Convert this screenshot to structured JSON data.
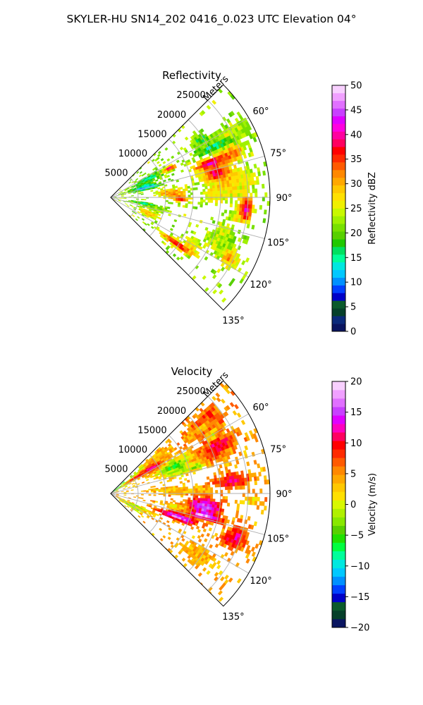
{
  "figure": {
    "suptitle": "SKYLER-HU  SN14_202  0416_0.023 UTC Elevation 04°"
  },
  "chart_data": [
    {
      "type": "heatmap",
      "projection": "polar-sector",
      "title": "Reflectivity",
      "radial_label": "Meters",
      "radial_ticks": [
        "5000",
        "10000",
        "15000",
        "20000",
        "25000"
      ],
      "angle_ticks": [
        "60°",
        "75°",
        "90°",
        "105°",
        "120°",
        "135°"
      ],
      "azimuth_range_deg": [
        45,
        135
      ],
      "range_max_m": 29000,
      "grid": true,
      "colorbar": {
        "label": "Reflectivity dBZ",
        "vmin": 0,
        "vmax": 50,
        "ticks": [
          "0",
          "5",
          "10",
          "15",
          "20",
          "25",
          "30",
          "35",
          "40",
          "45",
          "50"
        ],
        "colors": [
          "#0a1560",
          "#0b2a7a",
          "#06402a",
          "#0b5a2c",
          "#0000c8",
          "#0040ff",
          "#0090ff",
          "#00c8ff",
          "#00e8e0",
          "#00ff9a",
          "#00e060",
          "#20c800",
          "#58d000",
          "#78e000",
          "#a0f000",
          "#c8f800",
          "#f0f000",
          "#ffe000",
          "#ffc800",
          "#ffa800",
          "#ff8800",
          "#ff5a00",
          "#ff2a00",
          "#ff0000",
          "#ff0060",
          "#ff00a0",
          "#ff00e0",
          "#e000ff",
          "#c840ff",
          "#e070ff",
          "#f0a0ff",
          "#f8d0ff"
        ]
      }
    },
    {
      "type": "heatmap",
      "projection": "polar-sector",
      "title": "Velocity",
      "radial_label": "Meters",
      "radial_ticks": [
        "5000",
        "10000",
        "15000",
        "20000",
        "25000"
      ],
      "angle_ticks": [
        "60°",
        "75°",
        "90°",
        "105°",
        "120°",
        "135°"
      ],
      "azimuth_range_deg": [
        45,
        135
      ],
      "range_max_m": 29000,
      "grid": true,
      "colorbar": {
        "label": "Velocity (m/s)",
        "vmin": -20,
        "vmax": 20,
        "ticks": [
          "−20",
          "−15",
          "−10",
          "−5",
          "0",
          "5",
          "10",
          "15",
          "20"
        ],
        "colors": [
          "#0a1560",
          "#06402a",
          "#0b5a2c",
          "#0000c8",
          "#0040ff",
          "#0090ff",
          "#00c8ff",
          "#00e8e0",
          "#00ff9a",
          "#00ff40",
          "#20e000",
          "#58d000",
          "#88e800",
          "#b0f000",
          "#d8f800",
          "#ffe000",
          "#ffc800",
          "#ffa800",
          "#ff8800",
          "#ff5a00",
          "#ff2a00",
          "#ff0000",
          "#ff0060",
          "#ff00c0",
          "#e000ff",
          "#c840ff",
          "#e070ff",
          "#f0a0ff",
          "#f8d0ff"
        ]
      }
    }
  ]
}
